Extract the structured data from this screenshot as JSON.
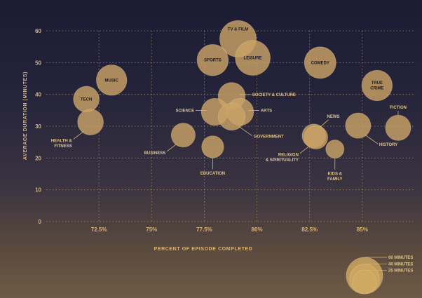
{
  "chart_data": {
    "type": "scatter",
    "xlabel": "PERCENT OF EPISODE COMPLETED",
    "ylabel": "AVERAGE DURATION (MINUTES)",
    "xlim": [
      70,
      87.5
    ],
    "ylim": [
      0,
      60
    ],
    "x_ticks": [
      {
        "value": 72.5,
        "label": "72.5%"
      },
      {
        "value": 75,
        "label": "75%"
      },
      {
        "value": 77.5,
        "label": "77.5%"
      },
      {
        "value": 80,
        "label": "80%"
      },
      {
        "value": 82.5,
        "label": "82.5%"
      },
      {
        "value": 85,
        "label": "85%"
      }
    ],
    "y_ticks": [
      0,
      10,
      20,
      30,
      40,
      50,
      60
    ],
    "grid": true,
    "points": [
      {
        "id": "tv-film",
        "lines": [
          "TV & FILM"
        ],
        "x": 79.1,
        "y": 57.5,
        "duration": 60,
        "label_pos": "top-inside"
      },
      {
        "id": "sports",
        "lines": [
          "SPORTS"
        ],
        "x": 77.9,
        "y": 50.8,
        "duration": 44,
        "label_pos": "inside"
      },
      {
        "id": "leisure",
        "lines": [
          "LEISURE"
        ],
        "x": 79.8,
        "y": 51.5,
        "duration": 55,
        "label_pos": "inside"
      },
      {
        "id": "comedy",
        "lines": [
          "COMEDY"
        ],
        "x": 83.0,
        "y": 50.0,
        "duration": 45,
        "label_pos": "inside"
      },
      {
        "id": "music",
        "lines": [
          "MUSIC"
        ],
        "x": 73.1,
        "y": 44.5,
        "duration": 42,
        "label_pos": "inside"
      },
      {
        "id": "true-crime",
        "lines": [
          "TRUE",
          "CRIME"
        ],
        "x": 85.7,
        "y": 42.8,
        "duration": 42,
        "label_pos": "inside"
      },
      {
        "id": "tech",
        "lines": [
          "TECH"
        ],
        "x": 71.9,
        "y": 38.5,
        "duration": 30,
        "label_pos": "inside"
      },
      {
        "id": "society-culture",
        "lines": [
          "SOCIETY & CULTURE"
        ],
        "x": 78.8,
        "y": 39.5,
        "duration": 33,
        "label_pos": "right"
      },
      {
        "id": "science",
        "lines": [
          "SCIENCE"
        ],
        "x": 78.0,
        "y": 34.5,
        "duration": 33,
        "label_pos": "left"
      },
      {
        "id": "arts",
        "lines": [
          "ARTS"
        ],
        "x": 79.2,
        "y": 34.5,
        "duration": 33,
        "label_pos": "right"
      },
      {
        "id": "government",
        "lines": [
          "GOVERNMENT"
        ],
        "x": 78.8,
        "y": 33.0,
        "duration": 33,
        "label_pos": "below-right"
      },
      {
        "id": "health-fitness",
        "lines": [
          "HEALTH &",
          "FITNESS"
        ],
        "x": 72.1,
        "y": 31.3,
        "duration": 30,
        "label_pos": "below-left"
      },
      {
        "id": "fiction",
        "lines": [
          "FICTION"
        ],
        "x": 86.7,
        "y": 29.5,
        "duration": 29,
        "label_pos": "above"
      },
      {
        "id": "history",
        "lines": [
          "HISTORY"
        ],
        "x": 84.8,
        "y": 30.2,
        "duration": 29,
        "label_pos": "below-right"
      },
      {
        "id": "news",
        "lines": [
          "NEWS"
        ],
        "x": 82.7,
        "y": 27.0,
        "duration": 25,
        "label_pos": "above-right"
      },
      {
        "id": "religion-spirituality",
        "lines": [
          "RELIGION",
          "& SPIRITUALITY"
        ],
        "x": 82.8,
        "y": 26.5,
        "duration": 25,
        "label_pos": "below-left"
      },
      {
        "id": "business",
        "lines": [
          "BUSINESS"
        ],
        "x": 76.5,
        "y": 27.2,
        "duration": 26,
        "label_pos": "below-left"
      },
      {
        "id": "education",
        "lines": [
          "EDUCATION"
        ],
        "x": 77.9,
        "y": 23.5,
        "duration": 22,
        "label_pos": "below"
      },
      {
        "id": "kids-family",
        "lines": [
          "KIDS &",
          "FAMILY"
        ],
        "x": 83.7,
        "y": 22.8,
        "duration": 15,
        "label_pos": "below"
      }
    ],
    "size_legend": [
      {
        "minutes": 60,
        "label": "60 MINUTES"
      },
      {
        "minutes": 40,
        "label": "40 MINUTES"
      },
      {
        "minutes": 25,
        "label": "25 MINUTES"
      }
    ]
  }
}
